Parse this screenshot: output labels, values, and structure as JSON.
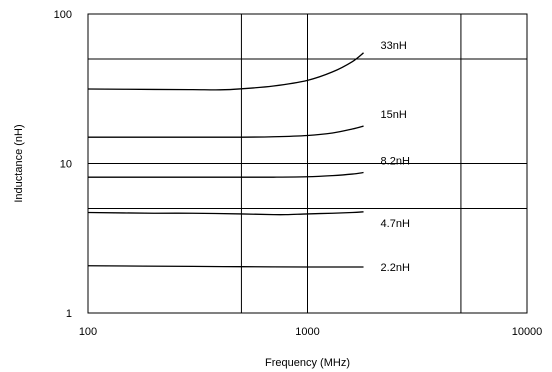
{
  "chart_data": {
    "type": "line",
    "title": "",
    "xlabel": "Frequency (MHz)",
    "ylabel": "Inductance (nH)",
    "xscale": "log",
    "yscale": "log",
    "xlim": [
      100,
      10000
    ],
    "ylim": [
      1,
      100
    ],
    "x_ticks": [
      100,
      1000,
      10000
    ],
    "x_tick_labels": [
      "100",
      "1000",
      "10000"
    ],
    "y_ticks": [
      1,
      10,
      100
    ],
    "y_tick_labels": [
      "1",
      "10",
      "100"
    ],
    "x_gridlines": [
      500,
      1000,
      5000
    ],
    "y_gridlines": [
      5,
      10,
      50
    ],
    "grid": true,
    "legend": "none (series labeled inline at right end of curves)",
    "series": [
      {
        "name": "33nH",
        "x": [
          100,
          200,
          300,
          400,
          500,
          700,
          1000,
          1300,
          1600,
          1800
        ],
        "y": [
          31.5,
          31.3,
          31.2,
          31.1,
          31.6,
          33.0,
          36.0,
          41.0,
          48.0,
          55.0
        ]
      },
      {
        "name": "15nH",
        "x": [
          100,
          300,
          500,
          700,
          1000,
          1300,
          1600,
          1800
        ],
        "y": [
          15.0,
          15.0,
          15.0,
          15.1,
          15.4,
          16.0,
          17.0,
          17.8
        ]
      },
      {
        "name": "8.2nH",
        "x": [
          100,
          300,
          500,
          700,
          1000,
          1300,
          1600,
          1800
        ],
        "y": [
          8.1,
          8.1,
          8.1,
          8.1,
          8.15,
          8.3,
          8.5,
          8.7
        ]
      },
      {
        "name": "4.7nH",
        "x": [
          100,
          200,
          300,
          500,
          700,
          800,
          1000,
          1300,
          1600,
          1800
        ],
        "y": [
          4.7,
          4.65,
          4.65,
          4.6,
          4.55,
          4.55,
          4.6,
          4.65,
          4.7,
          4.75
        ]
      },
      {
        "name": "2.2nH",
        "x": [
          100,
          300,
          500,
          1000,
          1500,
          1800
        ],
        "y": [
          2.07,
          2.05,
          2.04,
          2.03,
          2.03,
          2.03
        ]
      }
    ],
    "line_color": "#000000"
  }
}
